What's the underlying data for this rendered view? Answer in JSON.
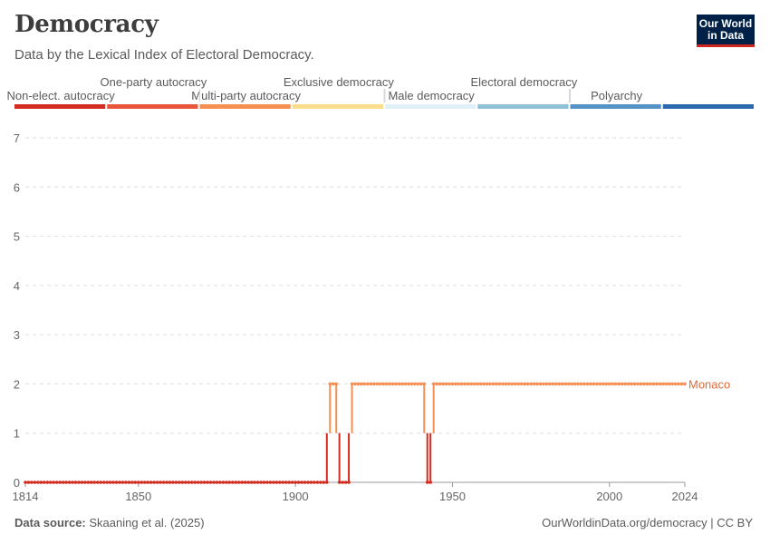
{
  "header": {
    "title": "Democracy",
    "subtitle": "Data by the Lexical Index of Electoral Democracy."
  },
  "logo": {
    "line1": "Our World",
    "line2": "in Data"
  },
  "footer": {
    "source_label": "Data source:",
    "source_text": "Skaaning et al. (2025)",
    "credit": "OurWorldinData.org/democracy | CC BY"
  },
  "chart_data": {
    "type": "line",
    "title": "Democracy",
    "subtitle": "Data by the Lexical Index of Electoral Democracy.",
    "xlabel": "",
    "ylabel": "",
    "xlim": [
      1814,
      2024
    ],
    "ylim": [
      0,
      7
    ],
    "x_ticks": [
      1814,
      1850,
      1900,
      1950,
      2000,
      2024
    ],
    "y_ticks": [
      0,
      1,
      2,
      3,
      4,
      5,
      6,
      7
    ],
    "grid": "horizontal dashed",
    "color_legend": [
      {
        "label": "Non-elect. autocracy",
        "value": 0,
        "color": "#d42b21"
      },
      {
        "label": "One-party autocracy",
        "value": 1,
        "color": "#e8553b"
      },
      {
        "label": "Multi-party autocracy",
        "value": 2,
        "color": "#f58f54"
      },
      {
        "label": "Exclusive democracy",
        "value": 3,
        "color": "#fbdd8c"
      },
      {
        "label": "Male democracy",
        "value": 4,
        "color": "#e0f0f8"
      },
      {
        "label": "Electoral democracy",
        "value": 5,
        "color": "#90c0d8"
      },
      {
        "label": "Polyarchy",
        "value": 6,
        "color": "#5593c6"
      },
      {
        "label": "",
        "value": 7,
        "color": "#2a69ad"
      }
    ],
    "series": [
      {
        "name": "Monaco",
        "label_color": "#e26b39",
        "segments": [
          {
            "from": 1814,
            "to": 1910,
            "value": 0
          },
          {
            "from": 1911,
            "to": 1913,
            "value": 2
          },
          {
            "from": 1914,
            "to": 1917,
            "value": 0
          },
          {
            "from": 1918,
            "to": 1941,
            "value": 2
          },
          {
            "from": 1942,
            "to": 1943,
            "value": 0
          },
          {
            "from": 1944,
            "to": 2024,
            "value": 2
          }
        ]
      }
    ]
  }
}
